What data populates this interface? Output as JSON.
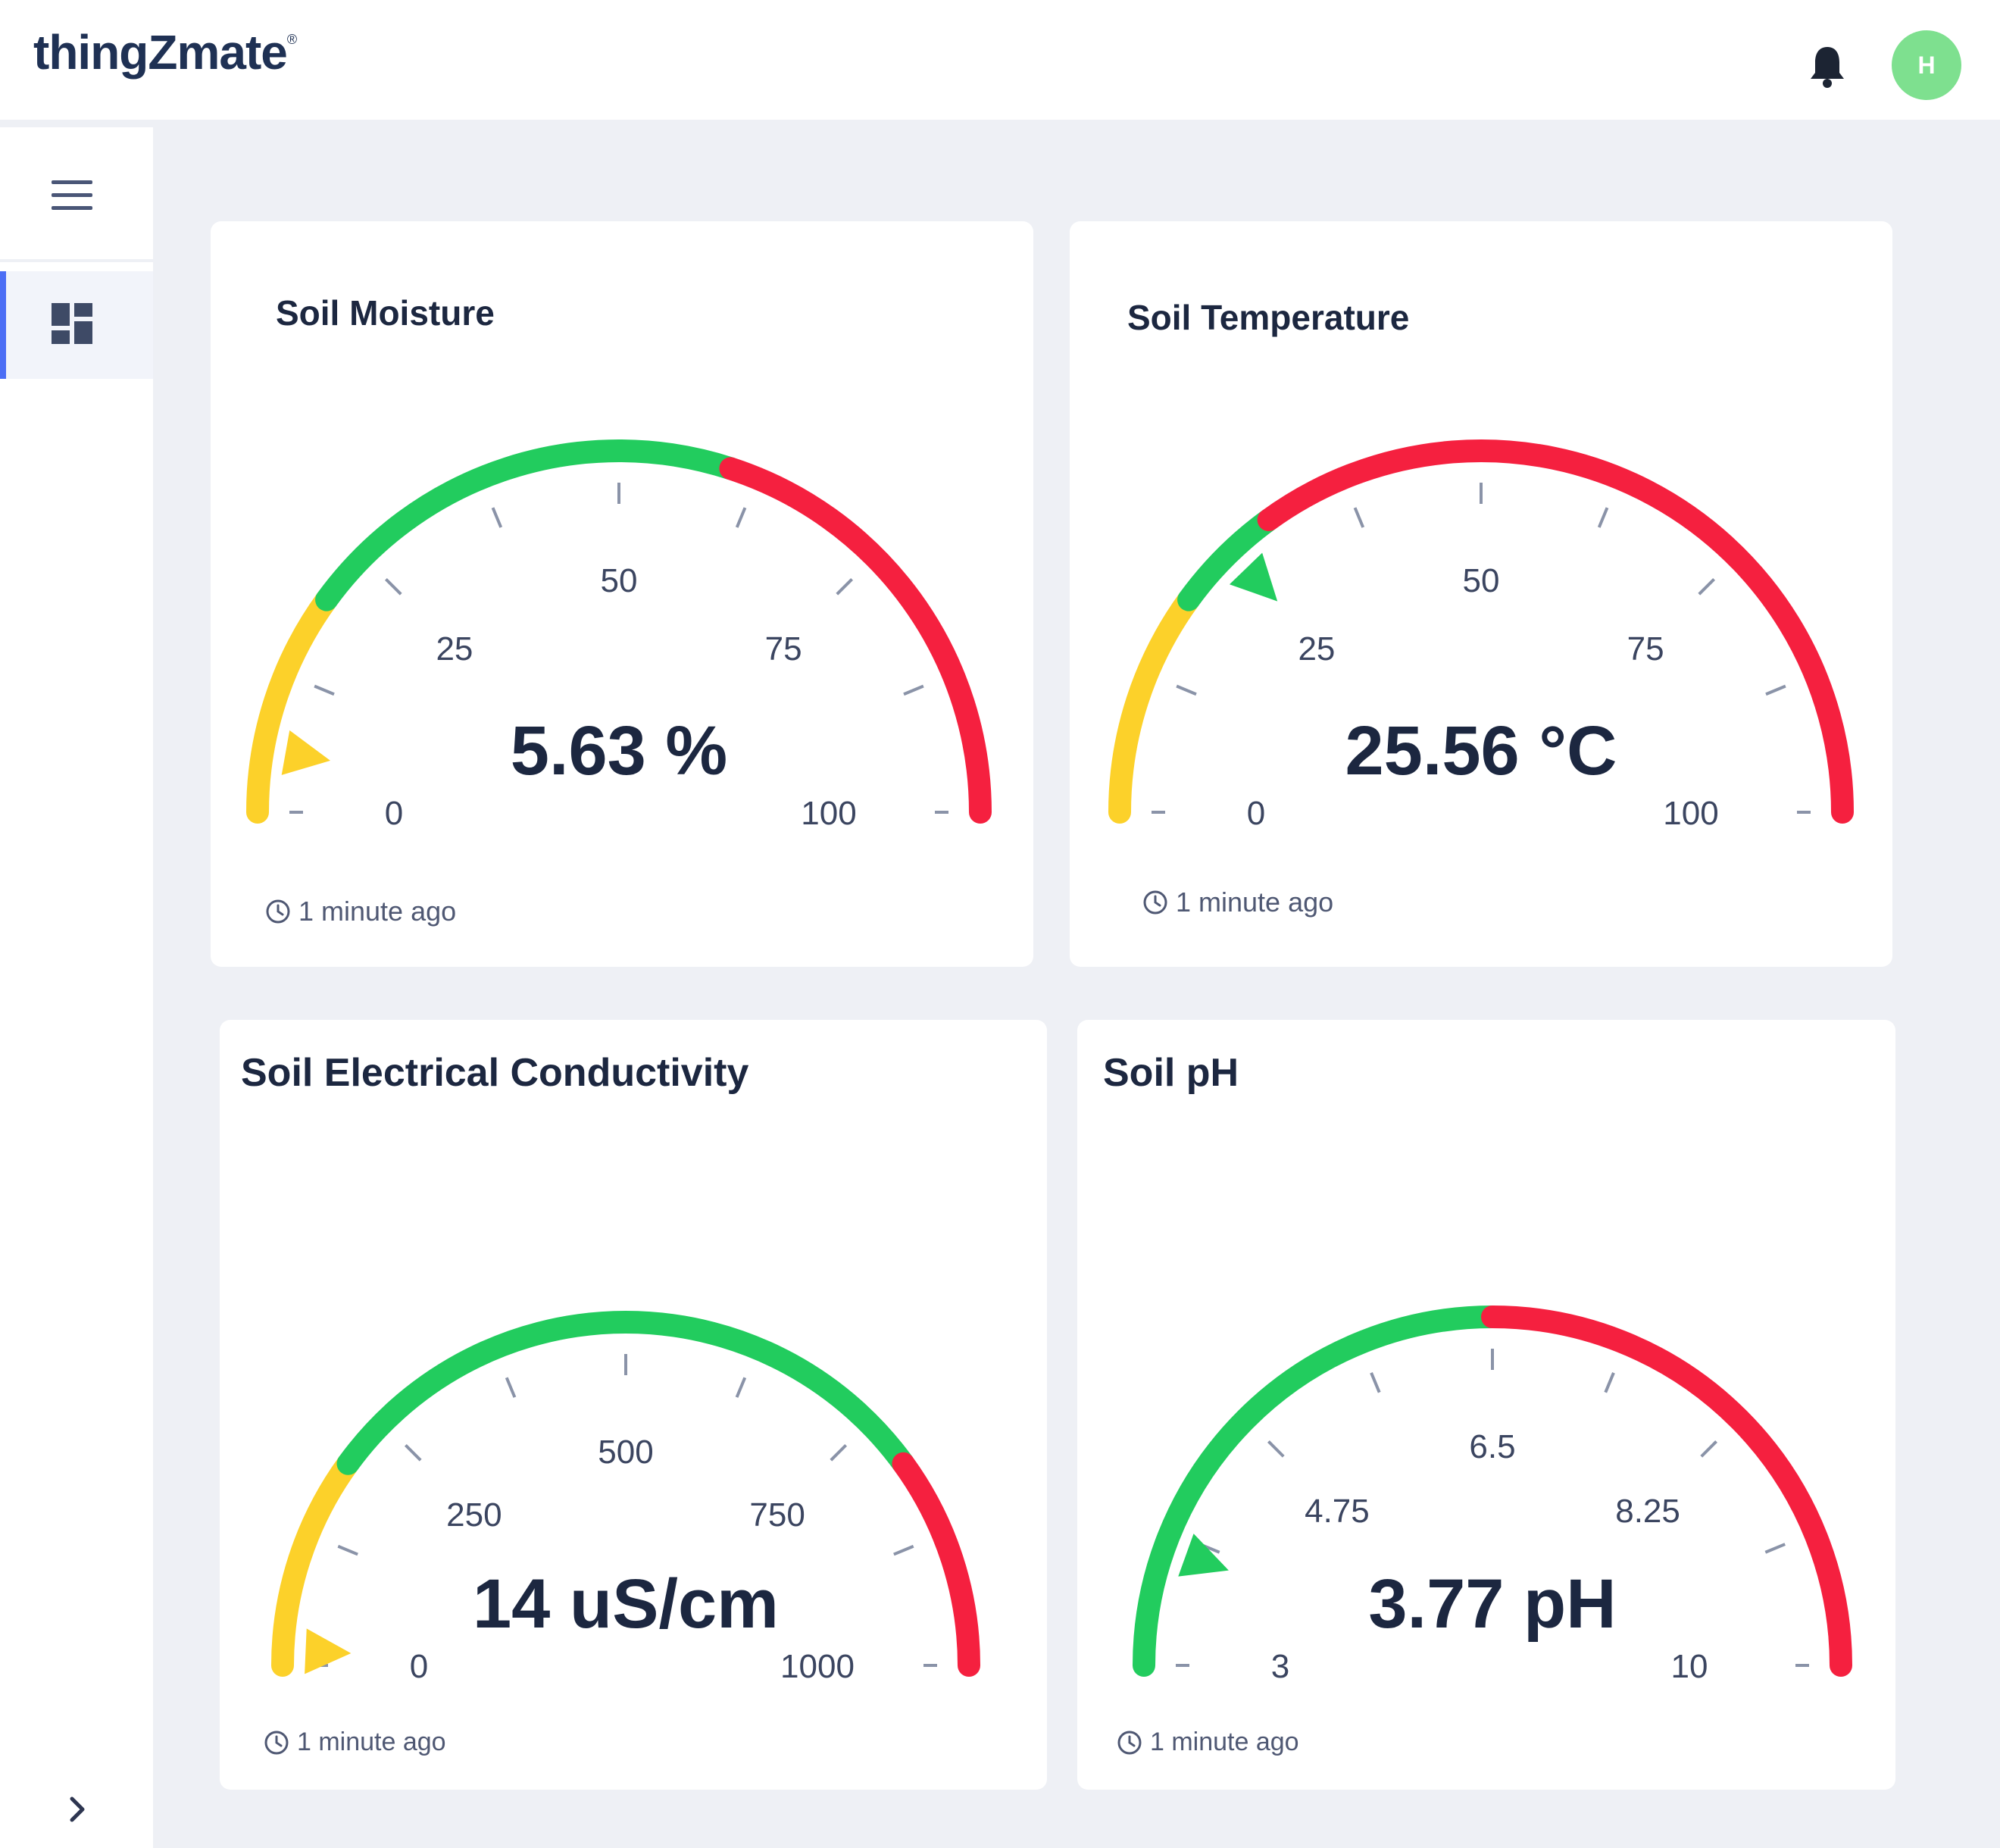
{
  "header": {
    "logo": "thingZmate",
    "logo_mark": "®",
    "avatar_initial": "H"
  },
  "icons": {
    "bell": "bell-icon",
    "menu": "hamburger-menu-icon",
    "dashboard": "dashboard-grid-icon",
    "expand": "chevron-right-icon",
    "clock": "clock-icon"
  },
  "colors": {
    "yellow": "#fcd12a",
    "green": "#22cc5e",
    "red": "#f5203f",
    "accent": "#4c6ef5"
  },
  "widgets": [
    {
      "title": "Soil Moisture",
      "value": "5.63 %",
      "updated": "1 minute ago",
      "min": 0,
      "max": 100,
      "current": 5.63,
      "tick_labels": [
        "0",
        "25",
        "50",
        "75",
        "100"
      ],
      "bands": [
        {
          "from": 0,
          "to": 20,
          "color": "#fcd12a"
        },
        {
          "from": 20,
          "to": 60,
          "color": "#22cc5e"
        },
        {
          "from": 60,
          "to": 100,
          "color": "#f5203f"
        }
      ],
      "needle_color": "#fcd12a"
    },
    {
      "title": "Soil Temperature",
      "value": "25.56 °C",
      "updated": "1 minute ago",
      "min": 0,
      "max": 100,
      "current": 25.56,
      "tick_labels": [
        "0",
        "25",
        "50",
        "75",
        "100"
      ],
      "bands": [
        {
          "from": 0,
          "to": 20,
          "color": "#fcd12a"
        },
        {
          "from": 20,
          "to": 30,
          "color": "#22cc5e"
        },
        {
          "from": 30,
          "to": 100,
          "color": "#f5203f"
        }
      ],
      "needle_color": "#22cc5e"
    },
    {
      "title": "Soil Electrical Conductivity",
      "value": "14 uS/cm",
      "updated": "1 minute ago",
      "min": 0,
      "max": 1000,
      "current": 14,
      "tick_labels": [
        "0",
        "250",
        "500",
        "750",
        "1000"
      ],
      "bands": [
        {
          "from": 0,
          "to": 200,
          "color": "#fcd12a"
        },
        {
          "from": 200,
          "to": 800,
          "color": "#22cc5e"
        },
        {
          "from": 800,
          "to": 1000,
          "color": "#f5203f"
        }
      ],
      "needle_color": "#fcd12a"
    },
    {
      "title": "Soil pH",
      "value": "3.77 pH",
      "updated": "1 minute ago",
      "min": 3,
      "max": 10,
      "current": 3.77,
      "tick_labels": [
        "3",
        "4.75",
        "6.5",
        "8.25",
        "10"
      ],
      "bands": [
        {
          "from": 3,
          "to": 6.5,
          "color": "#22cc5e"
        },
        {
          "from": 6.5,
          "to": 10,
          "color": "#f5203f"
        }
      ],
      "needle_color": "#22cc5e"
    }
  ]
}
